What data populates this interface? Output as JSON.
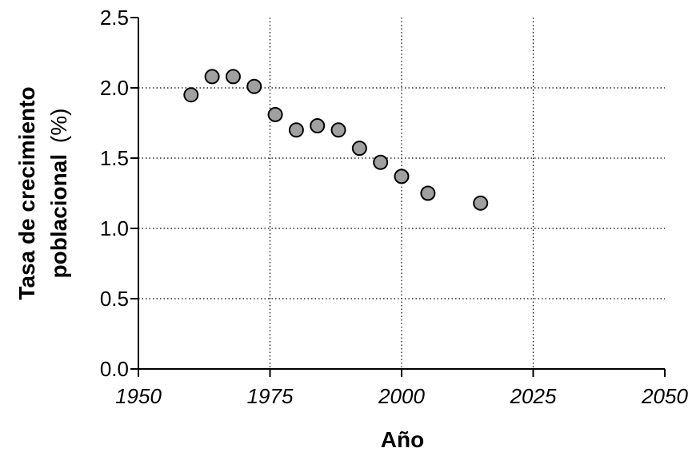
{
  "chart_data": {
    "type": "scatter",
    "xlabel": "Año",
    "ylabel_bold": "Tasa de crecimiento",
    "ylabel_line2_bold": "poblacional",
    "ylabel_line2_unit": "(%)",
    "xlim": [
      1950,
      2050
    ],
    "ylim": [
      0,
      2.5
    ],
    "x_ticks": [
      1950,
      1975,
      2000,
      2025,
      2050
    ],
    "x_tick_labels": [
      "1950",
      "1975",
      "2000",
      "2025",
      "2050"
    ],
    "y_ticks": [
      0,
      0.5,
      1,
      1.5,
      2,
      2.5
    ],
    "y_tick_labels": [
      "0.0",
      "0.5",
      "1.0",
      "1.5",
      "2.0",
      "2.5"
    ],
    "grid": "dotted",
    "marker_color": "#a0a0a0",
    "series": [
      {
        "points": [
          {
            "x": 1960,
            "y": 1.95
          },
          {
            "x": 1964,
            "y": 2.08
          },
          {
            "x": 1968,
            "y": 2.08
          },
          {
            "x": 1972,
            "y": 2.01
          },
          {
            "x": 1976,
            "y": 1.81
          },
          {
            "x": 1980,
            "y": 1.7
          },
          {
            "x": 1984,
            "y": 1.73
          },
          {
            "x": 1988,
            "y": 1.7
          },
          {
            "x": 1992,
            "y": 1.57
          },
          {
            "x": 1996,
            "y": 1.47
          },
          {
            "x": 2000,
            "y": 1.37
          },
          {
            "x": 2005,
            "y": 1.25
          },
          {
            "x": 2015,
            "y": 1.18
          }
        ]
      }
    ]
  }
}
